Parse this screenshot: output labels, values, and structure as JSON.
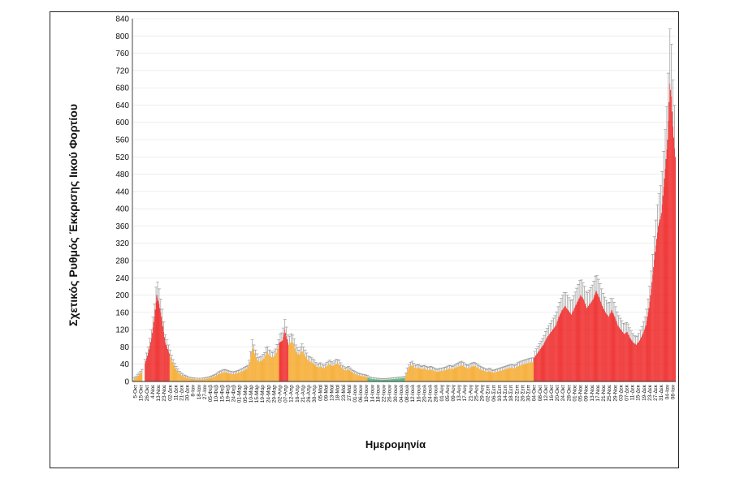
{
  "chart_data": {
    "type": "bar",
    "ylabel": "Σχετικός Ρυθμός Έκκρισης Ιικού Φορτίου",
    "xlabel": "Ημερομηνία",
    "ylim": [
      0,
      840
    ],
    "yticks": [
      0,
      40,
      80,
      120,
      160,
      200,
      240,
      280,
      320,
      360,
      400,
      440,
      480,
      520,
      560,
      600,
      640,
      680,
      720,
      760,
      800,
      840
    ],
    "x_tick_labels": [
      "5-Οκτ",
      "15-Οκτ",
      "26-Οκτ",
      "4-Νοε",
      "13-Νοε",
      "23-Νοε",
      "02-Δεκ",
      "11-Δεκ",
      "21-Δεκ",
      "30-Δεκ",
      "8-Ιαν",
      "18-Ιαν",
      "27-Ιαν",
      "05-Φεβ",
      "10-Φεβ",
      "15-Φεβ",
      "19-Φεβ",
      "24-Φεβ",
      "01-Μαρ",
      "05-Μαρ",
      "10-Μαρ",
      "15-Μαρ",
      "19-Μαρ",
      "24-Μαρ",
      "29-Μαρ",
      "02-Απρ",
      "07-Απρ",
      "12-Απρ",
      "16-Απρ",
      "21-Απρ",
      "26-Απρ",
      "30-Απρ",
      "05-Μαϊ",
      "09-Μαϊ",
      "13-Μαϊ",
      "18-Μαϊ",
      "23-Μαϊ",
      "27-Μαϊ",
      "01-Ιουν",
      "06-Ιουν",
      "10-Ιουν",
      "14-Ιουν",
      "18-Ιουν",
      "22-Ιουν",
      "26-Ιουν",
      "30-Ιουν",
      "04-Ιουλ",
      "08-Ιουλ",
      "12-Ιουλ",
      "16-Ιουλ",
      "20-Ιουλ",
      "24-Ιουλ",
      "28-Ιουλ",
      "01-Αυγ",
      "05-Αυγ",
      "09-Αυγ",
      "13-Αυγ",
      "17-Αυγ",
      "21-Αυγ",
      "25-Αυγ",
      "29-Αυγ",
      "02-Σεπ",
      "06-Σεπ",
      "10-Σεπ",
      "14-Σεπ",
      "18-Σεπ",
      "22-Σεπ",
      "26-Σεπ",
      "30-Σεπ",
      "04-Οκτ",
      "08-Οκτ",
      "12-Οκτ",
      "16-Οκτ",
      "20-Οκτ",
      "24-Οκτ",
      "28-Οκτ",
      "01-Νοε",
      "05-Νοε",
      "09-Νοε",
      "13-Νοε",
      "17-Νοε",
      "21-Νοε",
      "25-Νοε",
      "29-Νοε",
      "03-Δεκ",
      "07-Δεκ",
      "11-Δεκ",
      "15-Δεκ",
      "19-Δεκ",
      "23-Δεκ",
      "27-Δεκ",
      "31-Δεκ",
      "04-Ιαν",
      "08-Ιαν"
    ],
    "colors": {
      "red": "#ee1c1c",
      "orange": "#f5a623",
      "green": "#3cb371",
      "error": "#9a9a9a"
    },
    "segments": [
      {
        "color": "orange",
        "points": [
          [
            0,
            3
          ],
          [
            4,
            8
          ],
          [
            8,
            15
          ],
          [
            12,
            22
          ]
        ]
      },
      {
        "color": "red",
        "points": [
          [
            16,
            42
          ],
          [
            20,
            66
          ],
          [
            24,
            100
          ],
          [
            28,
            150
          ],
          [
            31,
            200
          ],
          [
            34,
            180
          ],
          [
            38,
            140
          ],
          [
            42,
            90
          ],
          [
            47,
            65
          ]
        ]
      },
      {
        "color": "orange",
        "points": [
          [
            48,
            60
          ],
          [
            51,
            45
          ],
          [
            55,
            30
          ],
          [
            60,
            18
          ],
          [
            66,
            11
          ],
          [
            72,
            7
          ],
          [
            80,
            5
          ],
          [
            90,
            5
          ],
          [
            100,
            8
          ],
          [
            106,
            12
          ],
          [
            112,
            18
          ],
          [
            118,
            22
          ],
          [
            124,
            19
          ],
          [
            130,
            17
          ],
          [
            136,
            20
          ],
          [
            142,
            24
          ],
          [
            148,
            30
          ],
          [
            151,
            45
          ],
          [
            154,
            80
          ],
          [
            158,
            60
          ],
          [
            162,
            45
          ],
          [
            166,
            48
          ],
          [
            170,
            55
          ],
          [
            173,
            70
          ],
          [
            176,
            60
          ],
          [
            180,
            55
          ],
          [
            184,
            62
          ],
          [
            188,
            80
          ]
        ]
      },
      {
        "color": "red",
        "points": [
          [
            189,
            90
          ],
          [
            193,
            95
          ],
          [
            196,
            120
          ],
          [
            200,
            90
          ]
        ]
      },
      {
        "color": "orange",
        "points": [
          [
            201,
            85
          ],
          [
            204,
            92
          ],
          [
            207,
            88
          ],
          [
            210,
            70
          ],
          [
            214,
            60
          ],
          [
            218,
            72
          ],
          [
            222,
            60
          ],
          [
            226,
            48
          ],
          [
            230,
            45
          ],
          [
            234,
            40
          ],
          [
            238,
            32
          ],
          [
            242,
            35
          ],
          [
            246,
            30
          ],
          [
            250,
            36
          ],
          [
            254,
            40
          ],
          [
            258,
            35
          ],
          [
            262,
            42
          ],
          [
            266,
            40
          ],
          [
            270,
            30
          ],
          [
            274,
            25
          ],
          [
            278,
            28
          ],
          [
            282,
            22
          ],
          [
            286,
            18
          ],
          [
            290,
            15
          ],
          [
            294,
            13
          ],
          [
            298,
            12
          ],
          [
            302,
            10
          ]
        ]
      },
      {
        "color": "green",
        "points": [
          [
            303,
            8
          ],
          [
            308,
            6
          ],
          [
            314,
            5
          ],
          [
            320,
            4
          ],
          [
            326,
            4
          ],
          [
            332,
            5
          ],
          [
            338,
            6
          ],
          [
            344,
            7
          ],
          [
            350,
            8
          ]
        ]
      },
      {
        "color": "orange",
        "points": [
          [
            351,
            10
          ],
          [
            354,
            25
          ],
          [
            357,
            35
          ],
          [
            360,
            38
          ],
          [
            364,
            30
          ],
          [
            368,
            32
          ],
          [
            372,
            28
          ],
          [
            376,
            30
          ],
          [
            380,
            26
          ],
          [
            384,
            28
          ],
          [
            388,
            25
          ],
          [
            392,
            22
          ],
          [
            396,
            24
          ],
          [
            400,
            25
          ],
          [
            404,
            27
          ],
          [
            408,
            30
          ],
          [
            412,
            28
          ],
          [
            416,
            32
          ],
          [
            420,
            35
          ],
          [
            424,
            38
          ],
          [
            428,
            33
          ],
          [
            432,
            30
          ],
          [
            436,
            34
          ],
          [
            440,
            36
          ],
          [
            444,
            32
          ],
          [
            448,
            28
          ],
          [
            452,
            25
          ],
          [
            456,
            22
          ],
          [
            460,
            24
          ],
          [
            464,
            20
          ],
          [
            468,
            22
          ],
          [
            472,
            24
          ],
          [
            476,
            26
          ],
          [
            480,
            28
          ],
          [
            484,
            30
          ],
          [
            488,
            32
          ],
          [
            492,
            30
          ],
          [
            496,
            35
          ],
          [
            500,
            38
          ],
          [
            504,
            40
          ],
          [
            508,
            42
          ],
          [
            512,
            44
          ],
          [
            516,
            45
          ]
        ]
      },
      {
        "color": "red",
        "points": [
          [
            517,
            55
          ],
          [
            521,
            65
          ],
          [
            525,
            75
          ],
          [
            529,
            85
          ],
          [
            533,
            100
          ],
          [
            537,
            110
          ],
          [
            541,
            120
          ],
          [
            545,
            130
          ],
          [
            549,
            150
          ],
          [
            553,
            165
          ],
          [
            557,
            175
          ],
          [
            561,
            165
          ],
          [
            565,
            155
          ],
          [
            569,
            170
          ],
          [
            573,
            185
          ],
          [
            577,
            200
          ],
          [
            581,
            190
          ],
          [
            585,
            170
          ],
          [
            589,
            180
          ],
          [
            593,
            190
          ],
          [
            597,
            210
          ],
          [
            601,
            195
          ],
          [
            605,
            175
          ],
          [
            609,
            160
          ],
          [
            613,
            150
          ],
          [
            617,
            165
          ],
          [
            621,
            150
          ],
          [
            625,
            130
          ],
          [
            629,
            120
          ],
          [
            633,
            110
          ],
          [
            637,
            115
          ],
          [
            641,
            100
          ],
          [
            645,
            90
          ],
          [
            649,
            85
          ],
          [
            653,
            95
          ],
          [
            657,
            110
          ],
          [
            661,
            130
          ],
          [
            665,
            170
          ],
          [
            669,
            230
          ],
          [
            673,
            300
          ],
          [
            677,
            360
          ],
          [
            681,
            390
          ],
          [
            685,
            470
          ],
          [
            689,
            560
          ],
          [
            692,
            690
          ],
          [
            694,
            660
          ],
          [
            696,
            590
          ],
          [
            698,
            540
          ],
          [
            699,
            520
          ]
        ]
      }
    ]
  }
}
